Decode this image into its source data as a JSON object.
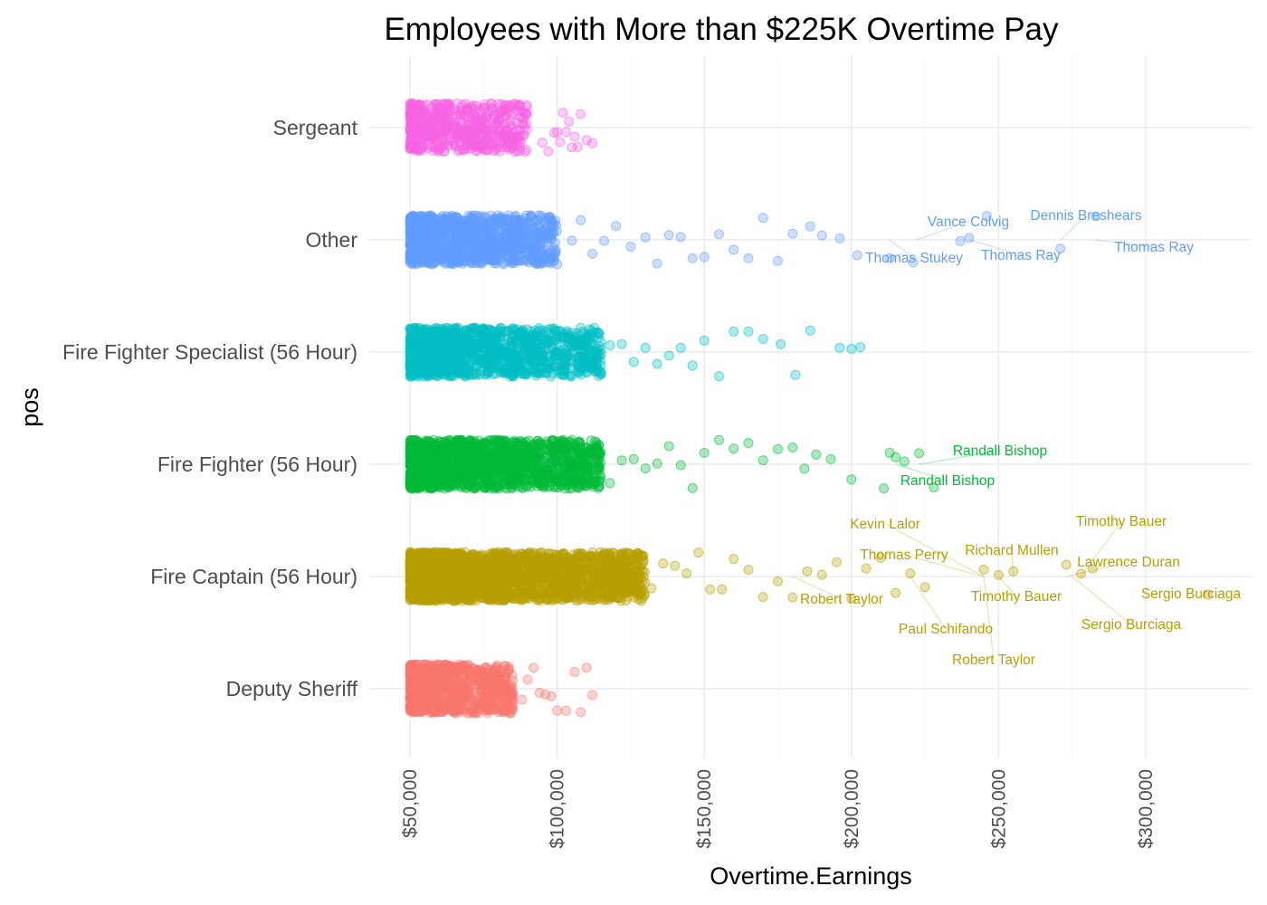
{
  "chart_data": {
    "type": "scatter",
    "title": "Employees with More than $225K Overtime Pay",
    "xlabel": "Overtime.Earnings",
    "ylabel": "pos",
    "x_ticks": [
      50000,
      100000,
      150000,
      200000,
      250000,
      300000
    ],
    "x_tick_labels": [
      "$50,000",
      "$100,000",
      "$150,000",
      "$200,000",
      "$250,000",
      "$300,000"
    ],
    "xlim": [
      40000,
      325000
    ],
    "grid": true,
    "legend": "none",
    "categories": [
      "Deputy Sheriff",
      "Fire Captain (56 Hour)",
      "Fire Fighter (56 Hour)",
      "Fire Fighter Specialist (56 Hour)",
      "Other",
      "Sergeant"
    ],
    "series": [
      {
        "category": "Sergeant",
        "color": "#f564e3",
        "n_bulk": 600,
        "bulk_max": 90000,
        "points": [
          95000,
          97000,
          99000,
          100000,
          101000,
          102000,
          103000,
          104000,
          105000,
          106000,
          107000,
          108000,
          110000,
          112000
        ],
        "labels": []
      },
      {
        "category": "Other",
        "color": "#619cff",
        "n_bulk": 1100,
        "bulk_max": 100000,
        "points": [
          105000,
          108000,
          112000,
          116000,
          120000,
          125000,
          130000,
          134000,
          138000,
          142000,
          146000,
          150000,
          155000,
          160000,
          165000,
          170000,
          175000,
          180000,
          186000,
          190000,
          196000,
          202000,
          213000,
          221000,
          237000,
          240000,
          246000,
          271000,
          283000
        ],
        "labels": [
          {
            "text": "Vance Colvig",
            "x": 222000
          },
          {
            "text": "Dennis Breshears",
            "x": 271000
          },
          {
            "text": "Thomas Ray",
            "x": 283000
          },
          {
            "text": "Thomas Stukey",
            "x": 213000
          },
          {
            "text": "Thomas Ray",
            "x": 240000
          }
        ]
      },
      {
        "category": "Fire Fighter Specialist (56 Hour)",
        "color": "#00bfc4",
        "n_bulk": 1300,
        "bulk_max": 115000,
        "points": [
          118000,
          122000,
          126000,
          130000,
          134000,
          138000,
          142000,
          146000,
          150000,
          155000,
          160000,
          165000,
          170000,
          176000,
          181000,
          186000,
          196000,
          200000,
          203000
        ],
        "labels": []
      },
      {
        "category": "Fire Fighter (56 Hour)",
        "color": "#00ba38",
        "n_bulk": 1600,
        "bulk_max": 115000,
        "points": [
          118000,
          122000,
          126000,
          130000,
          134000,
          138000,
          142000,
          146000,
          150000,
          155000,
          160000,
          165000,
          170000,
          175000,
          180000,
          184000,
          188000,
          193000,
          200000,
          211000,
          213000,
          215000,
          218000,
          223000,
          228000
        ],
        "labels": [
          {
            "text": "Randall Bishop",
            "x": 223000
          },
          {
            "text": "Randall Bishop",
            "x": 215000
          }
        ]
      },
      {
        "category": "Fire Captain (56 Hour)",
        "color": "#b79f00",
        "n_bulk": 2200,
        "bulk_max": 130000,
        "points": [
          132000,
          136000,
          140000,
          144000,
          148000,
          152000,
          156000,
          160000,
          165000,
          170000,
          175000,
          180000,
          185000,
          190000,
          195000,
          200000,
          205000,
          210000,
          215000,
          220000,
          225000,
          245000,
          250000,
          255000,
          273000,
          278000,
          282000,
          321000
        ],
        "labels": [
          {
            "text": "Kevin Lalor",
            "x": 245000
          },
          {
            "text": "Timothy Bauer",
            "x": 278000
          },
          {
            "text": "Thomas Perry",
            "x": 245000
          },
          {
            "text": "Richard Mullen",
            "x": 255000
          },
          {
            "text": "Lawrence Duran",
            "x": 273000
          },
          {
            "text": "Robert Taylor",
            "x": 180000
          },
          {
            "text": "Timothy Bauer",
            "x": 250000
          },
          {
            "text": "Sergio Burciaga",
            "x": 321000
          },
          {
            "text": "Paul Schifando",
            "x": 220000
          },
          {
            "text": "Sergio Burciaga",
            "x": 275000
          },
          {
            "text": "Robert Taylor",
            "x": 245000
          }
        ]
      },
      {
        "category": "Deputy Sheriff",
        "color": "#f8766d",
        "n_bulk": 900,
        "bulk_max": 85000,
        "points": [
          88000,
          90000,
          92000,
          94000,
          96000,
          98000,
          100000,
          103000,
          106000,
          108000,
          110000,
          112000
        ],
        "labels": []
      }
    ]
  }
}
